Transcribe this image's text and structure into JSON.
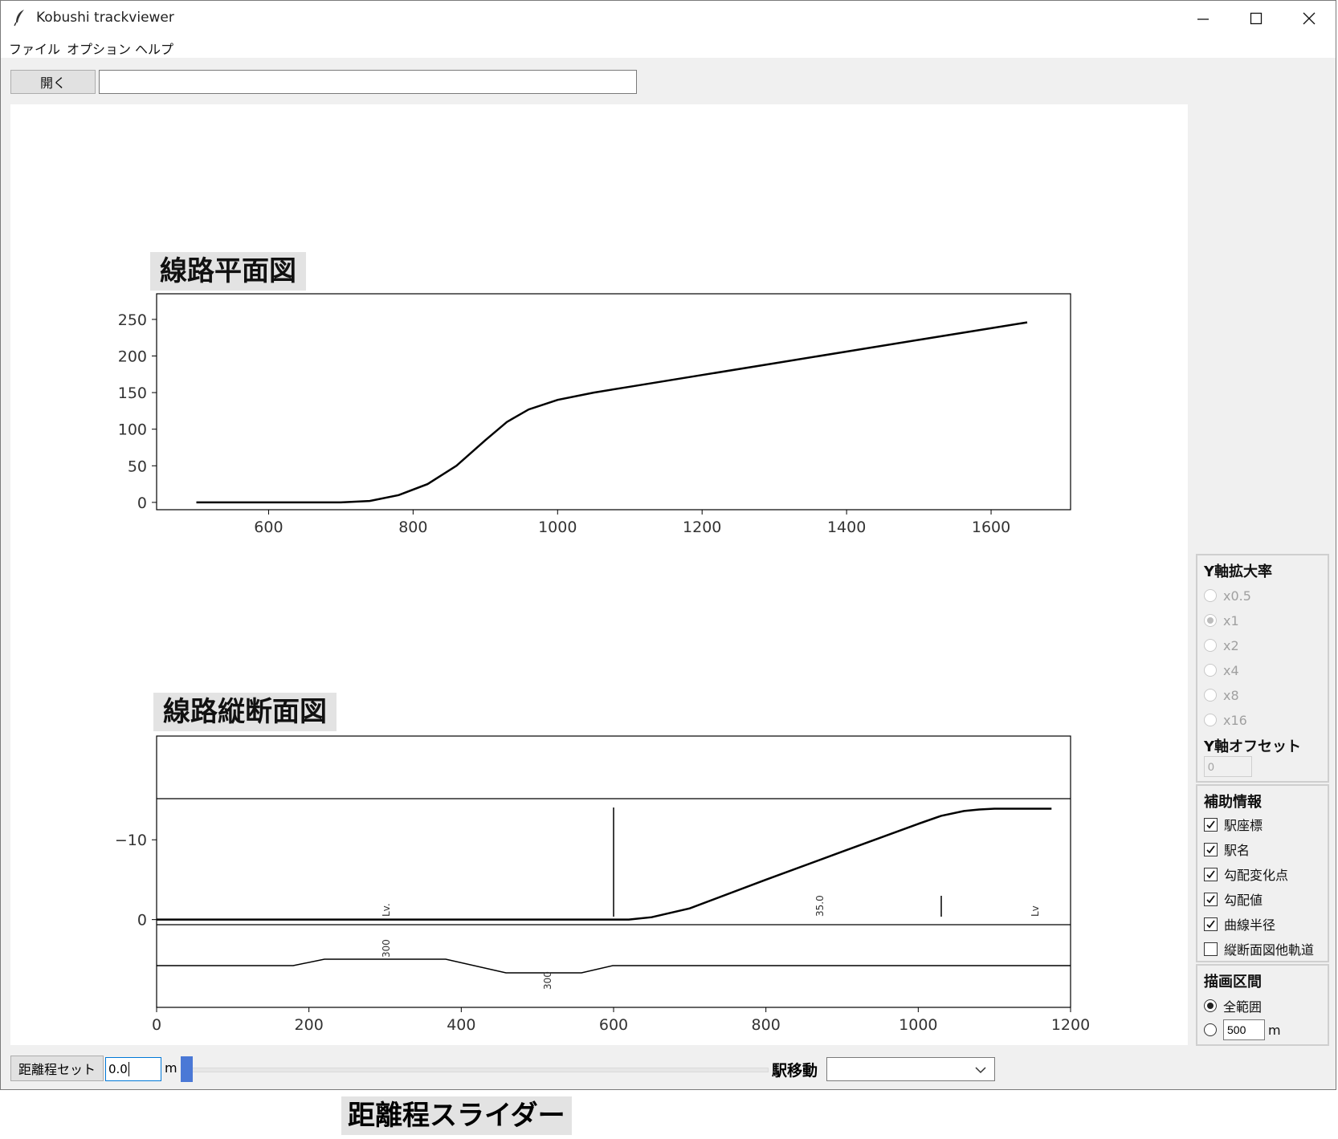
{
  "window": {
    "title": "Kobushi trackviewer"
  },
  "menu": [
    "ファイル",
    "オプション",
    "ヘルプ"
  ],
  "toolbar": {
    "open_label": "開く",
    "path_value": ""
  },
  "plan_chart": {
    "title": "線路平面図",
    "x_ticks": [
      "600",
      "800",
      "1000",
      "1200",
      "1400",
      "1600"
    ],
    "y_ticks": [
      "0",
      "50",
      "100",
      "150",
      "200",
      "250"
    ]
  },
  "profile_chart": {
    "title": "線路縦断面図",
    "x_ticks": [
      "0",
      "200",
      "400",
      "600",
      "800",
      "1000",
      "1200"
    ],
    "y_ticks": [
      "0",
      "−10"
    ],
    "gradient_labels": [
      "Lv.",
      "35.0",
      "Lv"
    ],
    "radius_labels": [
      "300",
      "300"
    ]
  },
  "chart_data": [
    {
      "type": "line",
      "title": "線路平面図",
      "xlim": [
        445,
        1710
      ],
      "ylim": [
        285,
        -10
      ],
      "series": [
        {
          "x": [
            500,
            550,
            600,
            650,
            700,
            740,
            780,
            820,
            860,
            900,
            930,
            960,
            1000,
            1050,
            1100,
            1200,
            1300,
            1400,
            1500,
            1600,
            1650
          ],
          "y": [
            0,
            0,
            0,
            0,
            0,
            2,
            10,
            25,
            50,
            85,
            110,
            127,
            140,
            150,
            158,
            174,
            190,
            206,
            222,
            238,
            246
          ]
        }
      ]
    },
    {
      "type": "line",
      "title": "線路縦断面図",
      "xlim": [
        0,
        1200
      ],
      "ylim": [
        -23,
        11
      ],
      "series": [
        {
          "x": [
            0,
            600,
            620,
            650,
            700,
            800,
            900,
            1000,
            1030,
            1060,
            1080,
            1100,
            1175
          ],
          "y": [
            0,
            0,
            0,
            -0.3,
            -1.4,
            -5.0,
            -8.5,
            -12.0,
            -13.0,
            -13.6,
            -13.8,
            -13.9,
            -13.9
          ]
        }
      ]
    }
  ],
  "yscale_panel": {
    "title": "Y軸拡大率",
    "options": [
      "x0.5",
      "x1",
      "x2",
      "x4",
      "x8",
      "x16"
    ],
    "offset_title": "Y軸オフセット",
    "offset_value": "0"
  },
  "aux_panel": {
    "title": "補助情報",
    "items": [
      {
        "label": "駅座標",
        "checked": true
      },
      {
        "label": "駅名",
        "checked": true
      },
      {
        "label": "勾配変化点",
        "checked": true
      },
      {
        "label": "勾配値",
        "checked": true
      },
      {
        "label": "曲線半径",
        "checked": true
      },
      {
        "label": "縦断面図他軌道",
        "checked": false
      }
    ]
  },
  "range_panel": {
    "title": "描画区間",
    "full_label": "全範囲",
    "range_value": "500",
    "unit": "m"
  },
  "bottom": {
    "set_label": "距離程セット",
    "distance_value": "0.0",
    "unit": "m",
    "station_label": "駅移動"
  },
  "caption": "距離程スライダー"
}
